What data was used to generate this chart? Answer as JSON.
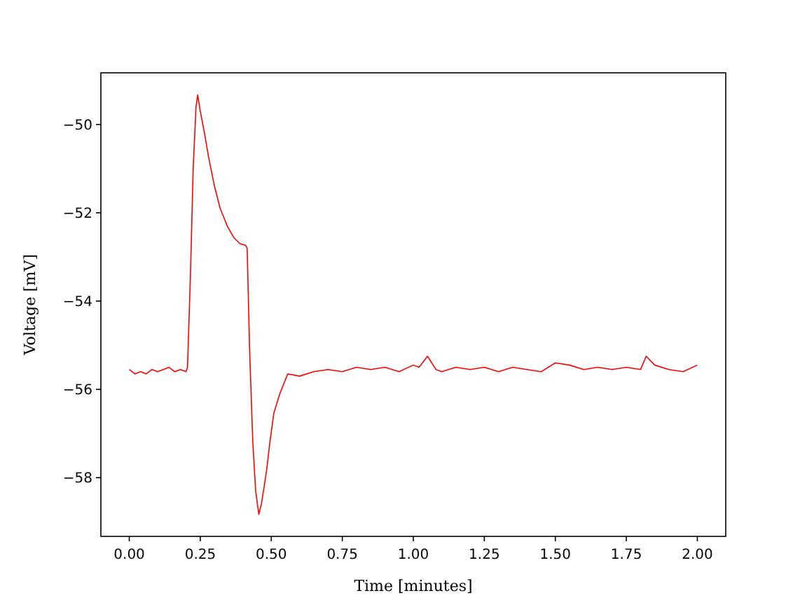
{
  "chart_data": {
    "type": "line",
    "xlabel": "Time [minutes]",
    "ylabel": "Voltage [mV]",
    "xlim": [
      -0.1,
      2.1
    ],
    "ylim": [
      -59.33,
      -48.83
    ],
    "xticks": [
      {
        "value": 0,
        "label": "0.00"
      },
      {
        "value": 0.25,
        "label": "0.25"
      },
      {
        "value": 0.5,
        "label": "0.50"
      },
      {
        "value": 0.75,
        "label": "0.75"
      },
      {
        "value": 1,
        "label": "1.00"
      },
      {
        "value": 1.25,
        "label": "1.25"
      },
      {
        "value": 1.5,
        "label": "1.50"
      },
      {
        "value": 1.75,
        "label": "1.75"
      },
      {
        "value": 2,
        "label": "2.00"
      }
    ],
    "yticks": [
      {
        "value": -58,
        "label": "−58"
      },
      {
        "value": -56,
        "label": "−56"
      },
      {
        "value": -54,
        "label": "−54"
      },
      {
        "value": -52,
        "label": "−52"
      },
      {
        "value": -50,
        "label": "−50"
      }
    ],
    "grid": false,
    "line_style": "solid",
    "series": [
      {
        "color": "#ff0000",
        "x": [
          0,
          0.02,
          0.04,
          0.06,
          0.08,
          0.1,
          0.12,
          0.14,
          0.16,
          0.18,
          0.2,
          0.205,
          0.215,
          0.225,
          0.235,
          0.241,
          0.25,
          0.265,
          0.279,
          0.3,
          0.32,
          0.345,
          0.369,
          0.39,
          0.41,
          0.415,
          0.424,
          0.435,
          0.445,
          0.456,
          0.465,
          0.475,
          0.484,
          0.495,
          0.509,
          0.53,
          0.558,
          0.6,
          0.65,
          0.7,
          0.75,
          0.8,
          0.85,
          0.9,
          0.95,
          1.0,
          1.02,
          1.05,
          1.08,
          1.1,
          1.15,
          1.2,
          1.25,
          1.3,
          1.35,
          1.4,
          1.45,
          1.5,
          1.55,
          1.6,
          1.65,
          1.7,
          1.75,
          1.8,
          1.82,
          1.85,
          1.9,
          1.95,
          2.0
        ],
        "values": [
          -55.55,
          -55.65,
          -55.6,
          -55.65,
          -55.55,
          -55.6,
          -55.55,
          -55.5,
          -55.6,
          -55.55,
          -55.6,
          -55.5,
          -53.5,
          -51,
          -49.6,
          -49.33,
          -49.7,
          -50.2,
          -50.73,
          -51.4,
          -51.9,
          -52.3,
          -52.57,
          -52.7,
          -52.74,
          -52.8,
          -55.17,
          -57.2,
          -58.3,
          -58.83,
          -58.6,
          -58.2,
          -57.81,
          -57.2,
          -56.54,
          -56.1,
          -55.65,
          -55.7,
          -55.6,
          -55.55,
          -55.6,
          -55.5,
          -55.55,
          -55.5,
          -55.6,
          -55.45,
          -55.5,
          -55.25,
          -55.55,
          -55.6,
          -55.5,
          -55.55,
          -55.5,
          -55.6,
          -55.5,
          -55.55,
          -55.6,
          -55.4,
          -55.45,
          -55.55,
          -55.5,
          -55.55,
          -55.5,
          -55.55,
          -55.25,
          -55.45,
          -55.55,
          -55.6,
          -55.45
        ]
      }
    ]
  }
}
